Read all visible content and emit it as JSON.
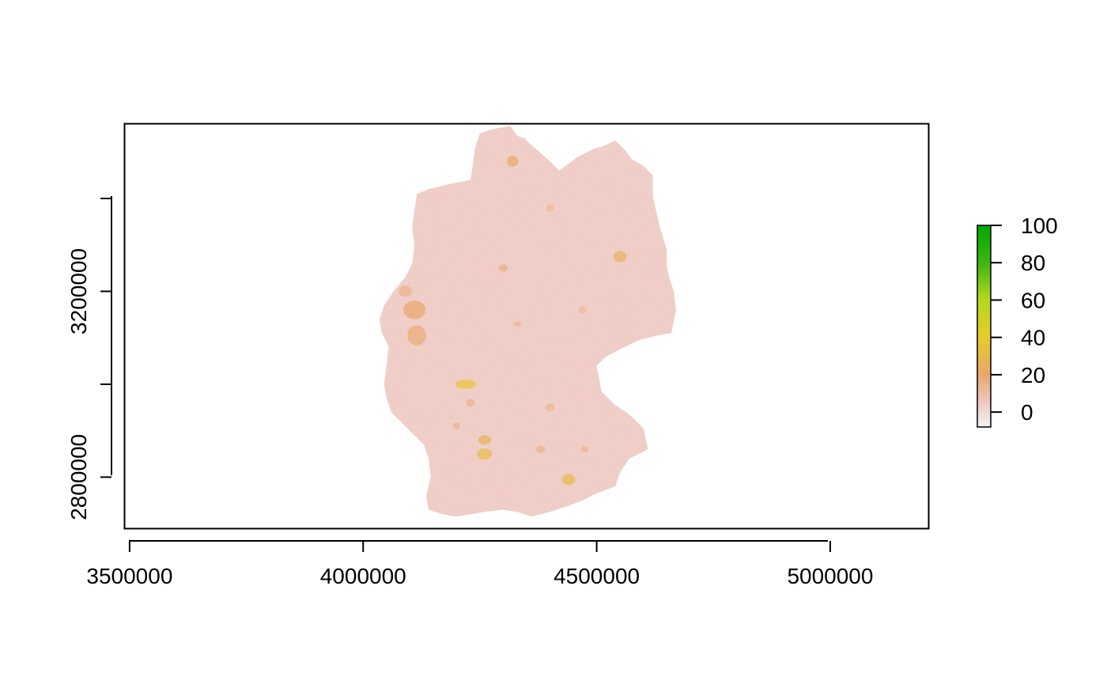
{
  "chart_data": {
    "type": "heatmap",
    "title": "",
    "xlabel": "",
    "ylabel": "",
    "xlim": [
      3490000,
      5210000
    ],
    "ylim": [
      2690000,
      3560000
    ],
    "x_ticks": [
      {
        "value": 3500000,
        "label": "3500000"
      },
      {
        "value": 4000000,
        "label": "4000000"
      },
      {
        "value": 4500000,
        "label": "4500000"
      },
      {
        "value": 5000000,
        "label": "5000000"
      }
    ],
    "y_ticks": [
      {
        "value": 2800000,
        "label": "2800000"
      },
      {
        "value": 3000000,
        "label": ""
      },
      {
        "value": 3200000,
        "label": "3200000"
      },
      {
        "value": 3400000,
        "label": ""
      }
    ],
    "legend": {
      "placement": "right",
      "min": -8,
      "max": 100,
      "ticks": [
        {
          "value": 0,
          "label": "0"
        },
        {
          "value": 20,
          "label": "20"
        },
        {
          "value": 40,
          "label": "40"
        },
        {
          "value": 60,
          "label": "60"
        },
        {
          "value": 80,
          "label": "80"
        },
        {
          "value": 100,
          "label": "100"
        }
      ],
      "color_stops": [
        {
          "value": -8,
          "color": "#f2f2f2"
        },
        {
          "value": 5,
          "color": "#eec9c0"
        },
        {
          "value": 20,
          "color": "#e8a66c"
        },
        {
          "value": 40,
          "color": "#e6cc2a"
        },
        {
          "value": 60,
          "color": "#b5d81c"
        },
        {
          "value": 80,
          "color": "#3fb515"
        },
        {
          "value": 100,
          "color": "#00a600"
        }
      ]
    },
    "region": {
      "base_color": "#efcdc6",
      "outline": [
        [
          4315000,
          3556000
        ],
        [
          4330000,
          3535000
        ],
        [
          4345000,
          3530000
        ],
        [
          4360000,
          3515000
        ],
        [
          4380000,
          3498000
        ],
        [
          4400000,
          3480000
        ],
        [
          4420000,
          3460000
        ],
        [
          4440000,
          3475000
        ],
        [
          4460000,
          3490000
        ],
        [
          4490000,
          3505000
        ],
        [
          4520000,
          3515000
        ],
        [
          4540000,
          3525000
        ],
        [
          4560000,
          3505000
        ],
        [
          4575000,
          3485000
        ],
        [
          4600000,
          3470000
        ],
        [
          4620000,
          3450000
        ],
        [
          4620000,
          3405000
        ],
        [
          4635000,
          3340000
        ],
        [
          4650000,
          3290000
        ],
        [
          4650000,
          3255000
        ],
        [
          4655000,
          3230000
        ],
        [
          4665000,
          3200000
        ],
        [
          4670000,
          3160000
        ],
        [
          4660000,
          3110000
        ],
        [
          4630000,
          3105000
        ],
        [
          4590000,
          3095000
        ],
        [
          4560000,
          3080000
        ],
        [
          4520000,
          3060000
        ],
        [
          4500000,
          3040000
        ],
        [
          4510000,
          2985000
        ],
        [
          4540000,
          2955000
        ],
        [
          4570000,
          2935000
        ],
        [
          4600000,
          2905000
        ],
        [
          4610000,
          2860000
        ],
        [
          4570000,
          2840000
        ],
        [
          4550000,
          2810000
        ],
        [
          4540000,
          2780000
        ],
        [
          4500000,
          2765000
        ],
        [
          4470000,
          2750000
        ],
        [
          4430000,
          2735000
        ],
        [
          4400000,
          2725000
        ],
        [
          4360000,
          2715000
        ],
        [
          4330000,
          2725000
        ],
        [
          4300000,
          2730000
        ],
        [
          4260000,
          2725000
        ],
        [
          4230000,
          2720000
        ],
        [
          4200000,
          2715000
        ],
        [
          4170000,
          2720000
        ],
        [
          4140000,
          2730000
        ],
        [
          4135000,
          2760000
        ],
        [
          4145000,
          2800000
        ],
        [
          4140000,
          2840000
        ],
        [
          4130000,
          2870000
        ],
        [
          4100000,
          2900000
        ],
        [
          4080000,
          2920000
        ],
        [
          4060000,
          2940000
        ],
        [
          4050000,
          2970000
        ],
        [
          4045000,
          3000000
        ],
        [
          4050000,
          3040000
        ],
        [
          4055000,
          3080000
        ],
        [
          4040000,
          3110000
        ],
        [
          4035000,
          3140000
        ],
        [
          4045000,
          3170000
        ],
        [
          4065000,
          3200000
        ],
        [
          4090000,
          3230000
        ],
        [
          4105000,
          3260000
        ],
        [
          4110000,
          3300000
        ],
        [
          4105000,
          3340000
        ],
        [
          4110000,
          3375000
        ],
        [
          4115000,
          3410000
        ],
        [
          4140000,
          3420000
        ],
        [
          4180000,
          3430000
        ],
        [
          4230000,
          3440000
        ],
        [
          4235000,
          3475000
        ],
        [
          4240000,
          3510000
        ],
        [
          4250000,
          3540000
        ],
        [
          4280000,
          3550000
        ]
      ],
      "hotspots": [
        {
          "x": 4110000,
          "y": 3160000,
          "rx": 24000,
          "ry": 20000,
          "value": 20
        },
        {
          "x": 4115000,
          "y": 3105000,
          "rx": 20000,
          "ry": 22000,
          "value": 18
        },
        {
          "x": 4090000,
          "y": 3200000,
          "rx": 14000,
          "ry": 12000,
          "value": 15
        },
        {
          "x": 4220000,
          "y": 3000000,
          "rx": 22000,
          "ry": 10000,
          "value": 35
        },
        {
          "x": 4260000,
          "y": 2850000,
          "rx": 16000,
          "ry": 12000,
          "value": 30
        },
        {
          "x": 4260000,
          "y": 2880000,
          "rx": 14000,
          "ry": 10000,
          "value": 25
        },
        {
          "x": 4440000,
          "y": 2795000,
          "rx": 14000,
          "ry": 12000,
          "value": 30
        },
        {
          "x": 4320000,
          "y": 3480000,
          "rx": 12000,
          "ry": 12000,
          "value": 22
        },
        {
          "x": 4550000,
          "y": 3275000,
          "rx": 14000,
          "ry": 12000,
          "value": 25
        },
        {
          "x": 4300000,
          "y": 3250000,
          "rx": 10000,
          "ry": 8000,
          "value": 16
        },
        {
          "x": 4400000,
          "y": 2950000,
          "rx": 10000,
          "ry": 8000,
          "value": 14
        },
        {
          "x": 4230000,
          "y": 2960000,
          "rx": 9000,
          "ry": 8000,
          "value": 16
        },
        {
          "x": 4380000,
          "y": 2860000,
          "rx": 10000,
          "ry": 8000,
          "value": 14
        },
        {
          "x": 4200000,
          "y": 2910000,
          "rx": 8000,
          "ry": 7000,
          "value": 14
        },
        {
          "x": 4475000,
          "y": 2860000,
          "rx": 8000,
          "ry": 7000,
          "value": 13
        },
        {
          "x": 4330000,
          "y": 3130000,
          "rx": 8000,
          "ry": 6000,
          "value": 13
        },
        {
          "x": 4400000,
          "y": 3380000,
          "rx": 8000,
          "ry": 8000,
          "value": 12
        },
        {
          "x": 4470000,
          "y": 3160000,
          "rx": 8000,
          "ry": 8000,
          "value": 12
        }
      ]
    }
  }
}
